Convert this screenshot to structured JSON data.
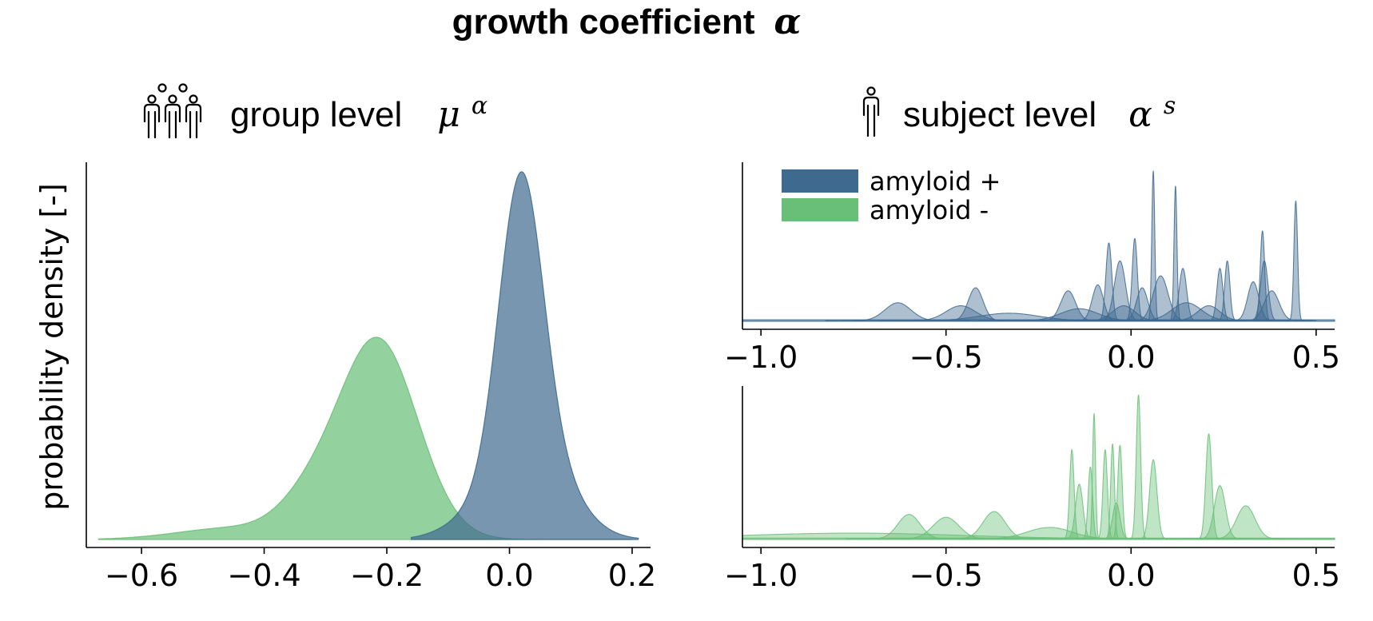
{
  "figure": {
    "title_text": "growth coefficient",
    "title_symbol": "α"
  },
  "panels": {
    "group": {
      "heading_text": "group level",
      "heading_symbol": "μ",
      "heading_superscript": "α",
      "icon": "people-group-icon"
    },
    "subject": {
      "heading_text": "subject level",
      "heading_symbol": "α",
      "heading_superscript": "s",
      "icon": "person-icon"
    }
  },
  "legend": [
    {
      "label": "amyloid +",
      "color": "#3e6a8f"
    },
    {
      "label": "amyloid -",
      "color": "#6abf78"
    }
  ],
  "chart_data": [
    {
      "type": "area",
      "id": "group-level",
      "ylabel": "probability density [-]",
      "xlabel": "",
      "xlim": [
        -0.69,
        0.23
      ],
      "ylim": [
        0,
        1.0
      ],
      "xticks": [
        -0.6,
        -0.4,
        -0.2,
        0.0,
        0.2
      ],
      "xtick_labels": [
        "−0.6",
        "−0.4",
        "−0.2",
        "0.0",
        "0.2"
      ],
      "grid": false,
      "series": [
        {
          "name": "amyloid -",
          "color": "#6abf78",
          "kde": [
            {
              "w": 0.86,
              "mu": -0.215,
              "sd": 0.065
            },
            {
              "w": 0.12,
              "mu": -0.33,
              "sd": 0.05
            },
            {
              "w": 0.05,
              "mu": -0.45,
              "sd": 0.09
            }
          ],
          "range": [
            -0.67,
            0.2
          ],
          "peak": 0.55
        },
        {
          "name": "amyloid +",
          "color": "#3e6a8f",
          "kde": [
            {
              "w": 0.78,
              "mu": 0.018,
              "sd": 0.036
            },
            {
              "w": 0.18,
              "mu": 0.055,
              "sd": 0.055
            },
            {
              "w": 0.06,
              "mu": -0.05,
              "sd": 0.05
            }
          ],
          "range": [
            -0.16,
            0.21
          ],
          "peak": 1.0
        }
      ]
    },
    {
      "type": "area",
      "id": "subject-level-amyloid-positive",
      "xlim": [
        -1.05,
        0.55
      ],
      "ylim": [
        0,
        1.0
      ],
      "xticks": [
        -1.0,
        -0.5,
        0.0,
        0.5
      ],
      "xtick_labels": [
        "−1.0",
        "−0.5",
        "0.0",
        "0.5"
      ],
      "grid": false,
      "series": [
        {
          "name": "amyloid +",
          "color": "#3e6a8f",
          "peaks": [
            {
              "mu": -0.63,
              "sd": 0.035,
              "h": 0.12
            },
            {
              "mu": -0.46,
              "sd": 0.04,
              "h": 0.1
            },
            {
              "mu": -0.42,
              "sd": 0.02,
              "h": 0.22
            },
            {
              "mu": -0.33,
              "sd": 0.08,
              "h": 0.05
            },
            {
              "mu": -0.17,
              "sd": 0.02,
              "h": 0.2
            },
            {
              "mu": -0.14,
              "sd": 0.05,
              "h": 0.08
            },
            {
              "mu": -0.09,
              "sd": 0.015,
              "h": 0.24
            },
            {
              "mu": -0.06,
              "sd": 0.008,
              "h": 0.52
            },
            {
              "mu": -0.03,
              "sd": 0.015,
              "h": 0.4
            },
            {
              "mu": -0.02,
              "sd": 0.03,
              "h": 0.1
            },
            {
              "mu": 0.01,
              "sd": 0.007,
              "h": 0.55
            },
            {
              "mu": 0.03,
              "sd": 0.015,
              "h": 0.22
            },
            {
              "mu": 0.06,
              "sd": 0.004,
              "h": 1.0
            },
            {
              "mu": 0.08,
              "sd": 0.02,
              "h": 0.3
            },
            {
              "mu": 0.12,
              "sd": 0.004,
              "h": 0.9
            },
            {
              "mu": 0.14,
              "sd": 0.01,
              "h": 0.35
            },
            {
              "mu": 0.15,
              "sd": 0.04,
              "h": 0.12
            },
            {
              "mu": 0.21,
              "sd": 0.03,
              "h": 0.1
            },
            {
              "mu": 0.24,
              "sd": 0.008,
              "h": 0.35
            },
            {
              "mu": 0.26,
              "sd": 0.007,
              "h": 0.4
            },
            {
              "mu": 0.33,
              "sd": 0.015,
              "h": 0.26
            },
            {
              "mu": 0.355,
              "sd": 0.006,
              "h": 0.6
            },
            {
              "mu": 0.36,
              "sd": 0.01,
              "h": 0.4
            },
            {
              "mu": 0.38,
              "sd": 0.02,
              "h": 0.2
            },
            {
              "mu": 0.445,
              "sd": 0.005,
              "h": 0.8
            }
          ]
        }
      ]
    },
    {
      "type": "area",
      "id": "subject-level-amyloid-negative",
      "xlim": [
        -1.05,
        0.55
      ],
      "ylim": [
        0,
        1.0
      ],
      "xticks": [
        -1.0,
        -0.5,
        0.0,
        0.5
      ],
      "xtick_labels": [
        "−1.0",
        "−0.5",
        "0.0",
        "0.5"
      ],
      "grid": false,
      "series": [
        {
          "name": "amyloid -",
          "color": "#6abf78",
          "peaks": [
            {
              "mu": -0.6,
              "sd": 0.03,
              "h": 0.17
            },
            {
              "mu": -0.5,
              "sd": 0.035,
              "h": 0.15
            },
            {
              "mu": -0.37,
              "sd": 0.03,
              "h": 0.19
            },
            {
              "mu": -0.22,
              "sd": 0.06,
              "h": 0.08
            },
            {
              "mu": -0.16,
              "sd": 0.006,
              "h": 0.62
            },
            {
              "mu": -0.14,
              "sd": 0.01,
              "h": 0.38
            },
            {
              "mu": -0.11,
              "sd": 0.006,
              "h": 0.5
            },
            {
              "mu": -0.1,
              "sd": 0.004,
              "h": 0.87
            },
            {
              "mu": -0.07,
              "sd": 0.006,
              "h": 0.62
            },
            {
              "mu": -0.05,
              "sd": 0.005,
              "h": 0.66
            },
            {
              "mu": -0.04,
              "sd": 0.01,
              "h": 0.25
            },
            {
              "mu": -0.03,
              "sd": 0.006,
              "h": 0.65
            },
            {
              "mu": 0.02,
              "sd": 0.006,
              "h": 1.0
            },
            {
              "mu": 0.06,
              "sd": 0.01,
              "h": 0.55
            },
            {
              "mu": 0.21,
              "sd": 0.008,
              "h": 0.73
            },
            {
              "mu": 0.24,
              "sd": 0.015,
              "h": 0.37
            },
            {
              "mu": 0.31,
              "sd": 0.025,
              "h": 0.23
            },
            {
              "mu": -0.75,
              "sd": 0.3,
              "h": 0.04
            }
          ]
        }
      ]
    }
  ]
}
